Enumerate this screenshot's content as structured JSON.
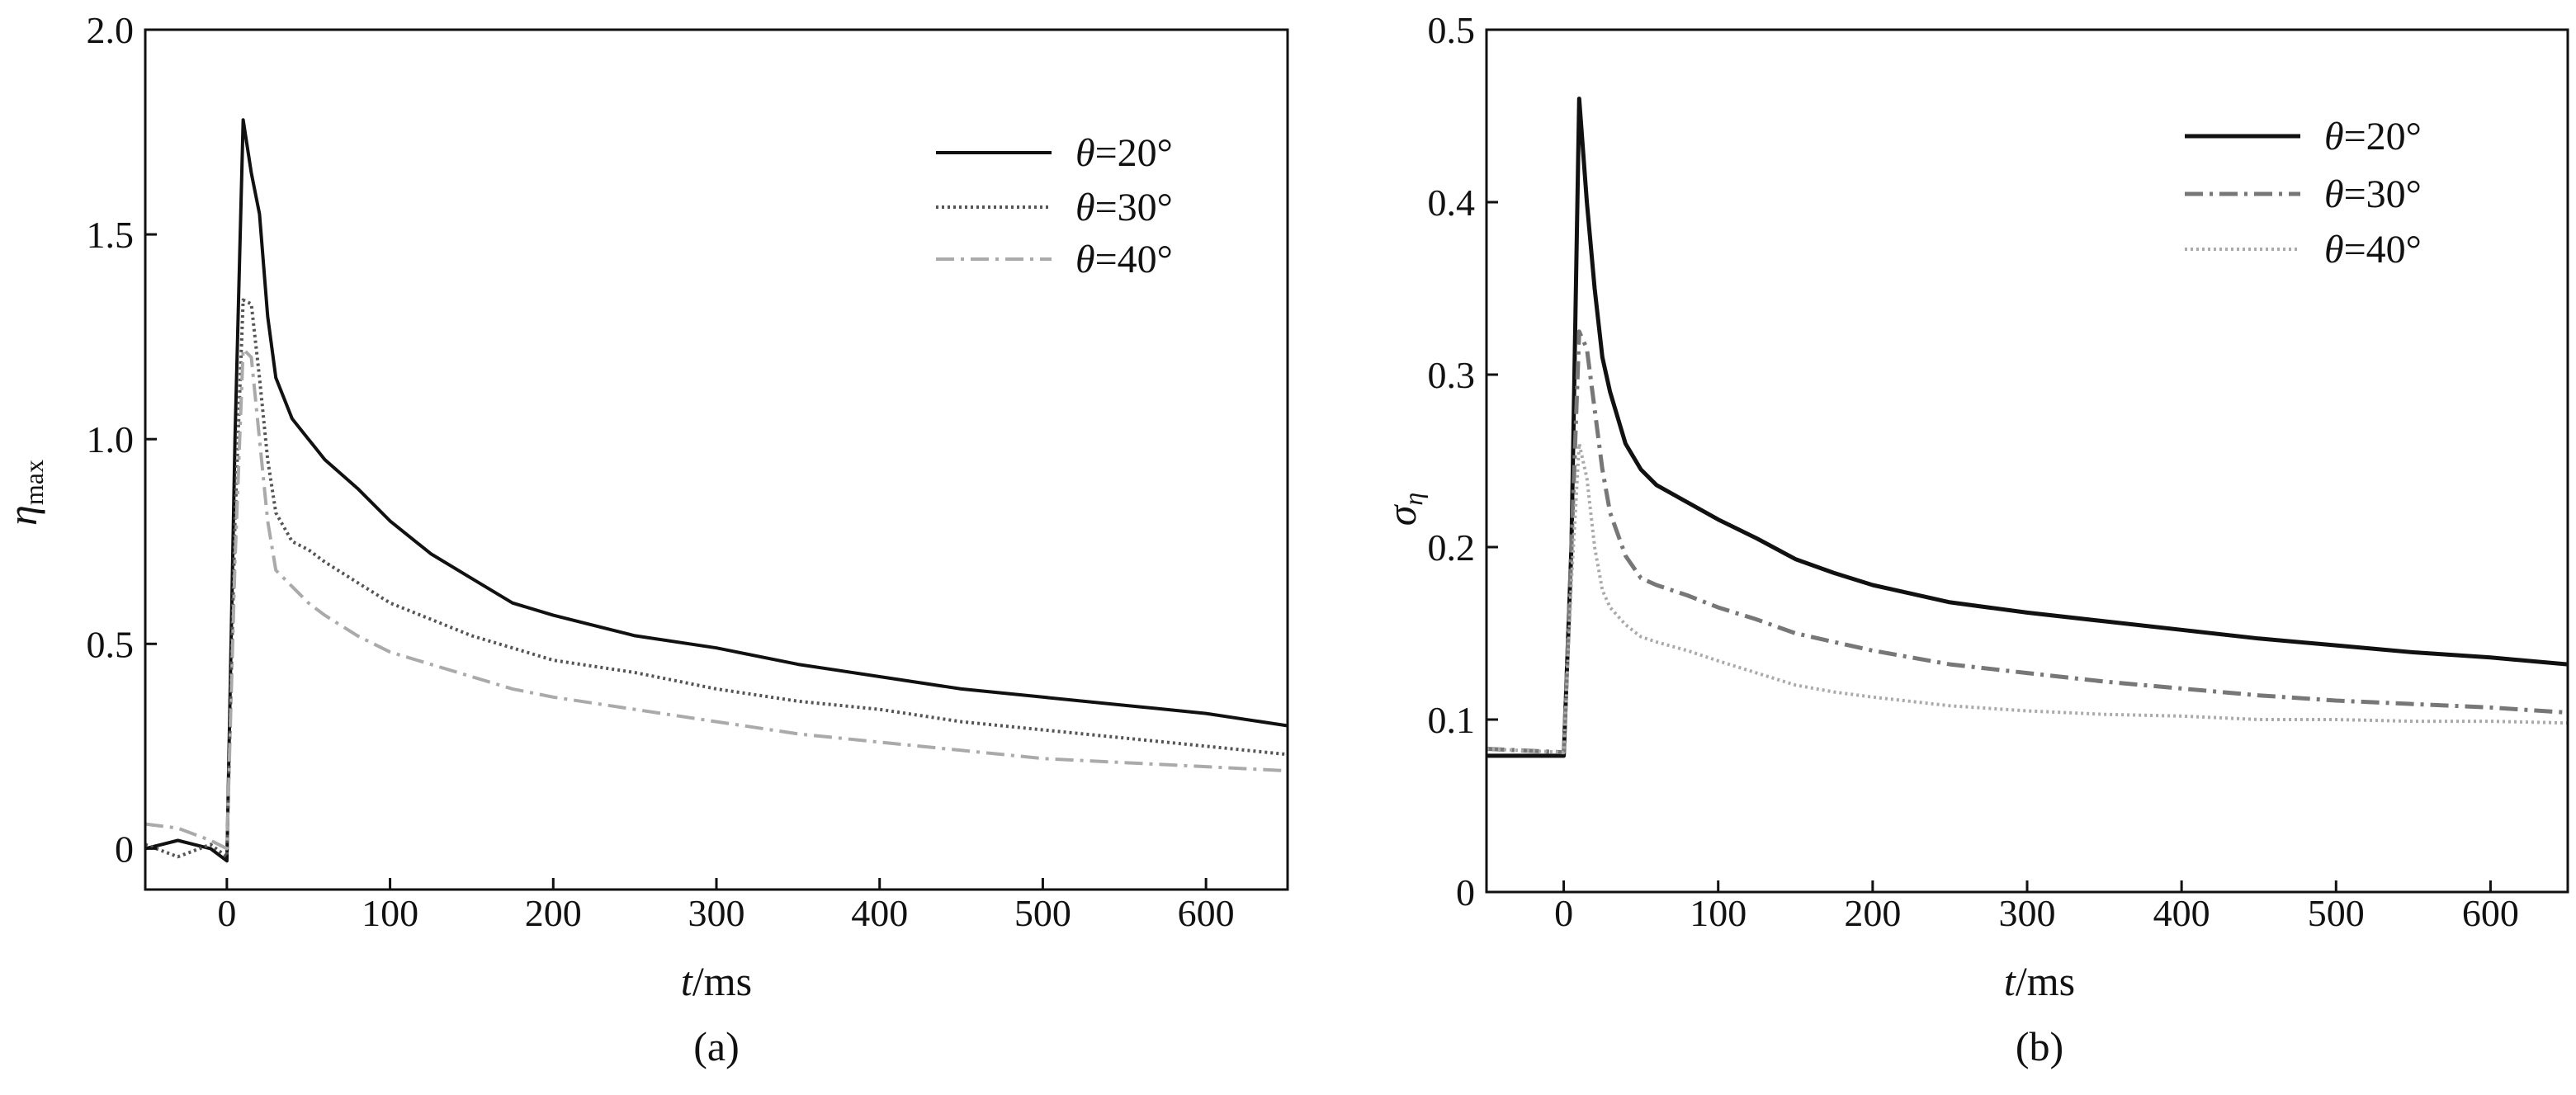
{
  "chart_data": [
    {
      "type": "line",
      "panel_label": "(a)",
      "xlabel_italic": "t",
      "xlabel_rest": "/ms",
      "ylabel_main": "η",
      "ylabel_sub": "max",
      "xlim": [
        -50,
        650
      ],
      "ylim": [
        -0.1,
        2.0
      ],
      "xticks": [
        0,
        100,
        200,
        300,
        400,
        500,
        600
      ],
      "yticks": [
        0,
        0.5,
        1.0,
        1.5,
        2.0
      ],
      "ytick_labels": [
        "0",
        "0.5",
        "1.0",
        "1.5",
        "2.0"
      ],
      "grid": false,
      "legend_placement": "top-right",
      "series": [
        {
          "name": "θ=20°",
          "color": "#111111",
          "style": "solid",
          "x": [
            -50,
            -30,
            -10,
            0,
            5,
            10,
            15,
            20,
            25,
            30,
            40,
            50,
            60,
            80,
            100,
            125,
            150,
            175,
            200,
            250,
            300,
            350,
            400,
            450,
            500,
            550,
            600,
            650
          ],
          "y": [
            0,
            0.02,
            0,
            -0.03,
            1.0,
            1.78,
            1.65,
            1.55,
            1.3,
            1.15,
            1.05,
            1.0,
            0.95,
            0.88,
            0.8,
            0.72,
            0.66,
            0.6,
            0.57,
            0.52,
            0.49,
            0.45,
            0.42,
            0.39,
            0.37,
            0.35,
            0.33,
            0.3
          ]
        },
        {
          "name": "θ=30°",
          "color": "#555555",
          "style": "dotted",
          "x": [
            -50,
            -30,
            -10,
            0,
            5,
            10,
            15,
            20,
            25,
            30,
            40,
            50,
            60,
            80,
            100,
            125,
            150,
            175,
            200,
            250,
            300,
            350,
            400,
            450,
            500,
            550,
            600,
            650
          ],
          "y": [
            0.01,
            -0.02,
            0.01,
            -0.02,
            0.8,
            1.34,
            1.33,
            1.15,
            0.95,
            0.82,
            0.75,
            0.73,
            0.7,
            0.65,
            0.6,
            0.56,
            0.52,
            0.49,
            0.46,
            0.43,
            0.39,
            0.36,
            0.34,
            0.31,
            0.29,
            0.27,
            0.25,
            0.23
          ]
        },
        {
          "name": "θ=40°",
          "color": "#aaaaaa",
          "style": "dash-dot",
          "x": [
            -50,
            -30,
            -10,
            0,
            5,
            10,
            15,
            20,
            25,
            30,
            40,
            50,
            60,
            80,
            100,
            125,
            150,
            175,
            200,
            250,
            300,
            350,
            400,
            450,
            500,
            550,
            600,
            650
          ],
          "y": [
            0.06,
            0.05,
            0.02,
            0,
            0.7,
            1.22,
            1.2,
            1.0,
            0.8,
            0.68,
            0.64,
            0.6,
            0.57,
            0.52,
            0.48,
            0.45,
            0.42,
            0.39,
            0.37,
            0.34,
            0.31,
            0.28,
            0.26,
            0.24,
            0.22,
            0.21,
            0.2,
            0.19
          ]
        }
      ]
    },
    {
      "type": "line",
      "panel_label": "(b)",
      "xlabel_italic": "t",
      "xlabel_rest": "/ms",
      "ylabel_main": "σ",
      "ylabel_sub": "η",
      "xlim": [
        -50,
        650
      ],
      "ylim": [
        0,
        0.5
      ],
      "xticks": [
        0,
        100,
        200,
        300,
        400,
        500,
        600
      ],
      "yticks": [
        0,
        0.1,
        0.2,
        0.3,
        0.4,
        0.5
      ],
      "ytick_labels": [
        "0",
        "0.1",
        "0.2",
        "0.3",
        "0.4",
        "0.5"
      ],
      "grid": false,
      "legend_placement": "top-right",
      "series": [
        {
          "name": "θ=20°",
          "color": "#111111",
          "style": "solid",
          "x": [
            -50,
            0,
            5,
            10,
            15,
            20,
            25,
            30,
            40,
            50,
            60,
            80,
            100,
            125,
            150,
            175,
            200,
            250,
            300,
            350,
            400,
            450,
            500,
            550,
            600,
            650
          ],
          "y": [
            0.079,
            0.079,
            0.2,
            0.46,
            0.4,
            0.35,
            0.31,
            0.29,
            0.26,
            0.245,
            0.236,
            0.226,
            0.216,
            0.205,
            0.193,
            0.185,
            0.178,
            0.168,
            0.162,
            0.157,
            0.152,
            0.147,
            0.143,
            0.139,
            0.136,
            0.132
          ]
        },
        {
          "name": "θ=30°",
          "color": "#777777",
          "style": "dash-dot",
          "x": [
            -50,
            0,
            5,
            10,
            15,
            20,
            25,
            30,
            40,
            50,
            60,
            80,
            100,
            125,
            150,
            175,
            200,
            250,
            300,
            350,
            400,
            450,
            500,
            550,
            600,
            650
          ],
          "y": [
            0.083,
            0.081,
            0.2,
            0.325,
            0.315,
            0.28,
            0.245,
            0.22,
            0.195,
            0.182,
            0.178,
            0.172,
            0.165,
            0.158,
            0.15,
            0.145,
            0.14,
            0.132,
            0.127,
            0.122,
            0.118,
            0.114,
            0.111,
            0.109,
            0.107,
            0.104
          ]
        },
        {
          "name": "θ=40°",
          "color": "#aaaaaa",
          "style": "dotted",
          "x": [
            -50,
            0,
            5,
            10,
            15,
            20,
            25,
            30,
            40,
            50,
            60,
            80,
            100,
            125,
            150,
            175,
            200,
            250,
            300,
            350,
            400,
            450,
            500,
            550,
            600,
            650
          ],
          "y": [
            0.083,
            0.081,
            0.18,
            0.26,
            0.24,
            0.2,
            0.175,
            0.165,
            0.155,
            0.148,
            0.145,
            0.14,
            0.134,
            0.127,
            0.12,
            0.116,
            0.113,
            0.108,
            0.105,
            0.103,
            0.102,
            0.1,
            0.1,
            0.099,
            0.099,
            0.098
          ]
        }
      ]
    }
  ]
}
